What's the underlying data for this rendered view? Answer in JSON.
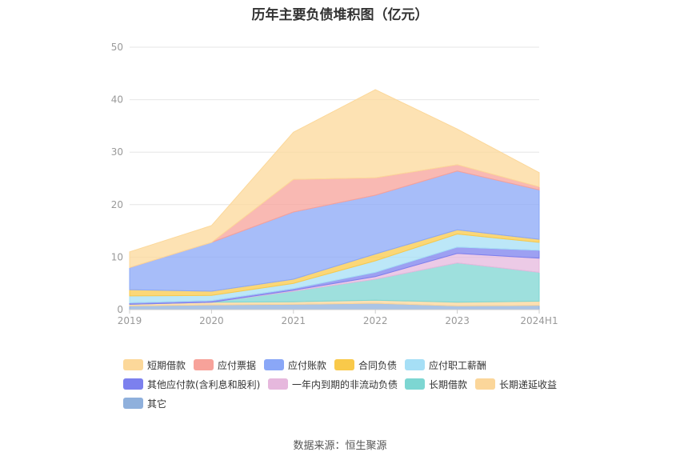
{
  "title": "历年主要负债堆积图（亿元）",
  "source": "数据来源：恒生聚源",
  "chart_data": {
    "type": "area",
    "stacked": true,
    "categories": [
      "2019",
      "2020",
      "2021",
      "2022",
      "2023",
      "2024H1"
    ],
    "ylim": [
      0,
      50
    ],
    "yticks": [
      0,
      10,
      20,
      30,
      40,
      50
    ],
    "grid": true,
    "legend_position": "bottom",
    "series": [
      {
        "name": "短期借款",
        "color": "#fcd89a",
        "values": [
          3.0,
          3.2,
          9.0,
          16.8,
          6.8,
          2.7
        ]
      },
      {
        "name": "应付票据",
        "color": "#f7a29a",
        "values": [
          0.0,
          0.0,
          6.2,
          3.3,
          1.2,
          0.6
        ]
      },
      {
        "name": "应付账款",
        "color": "#8aa7f7",
        "values": [
          4.2,
          9.3,
          12.8,
          11.2,
          11.2,
          9.4
        ]
      },
      {
        "name": "合同负债",
        "color": "#f9c94a",
        "values": [
          1.2,
          0.8,
          0.8,
          1.3,
          0.8,
          0.6
        ]
      },
      {
        "name": "应付职工薪酬",
        "color": "#a6dff6",
        "values": [
          1.3,
          1.0,
          1.0,
          2.2,
          2.5,
          1.5
        ]
      },
      {
        "name": "其他应付款(含利息和股利)",
        "color": "#7c80ee",
        "values": [
          0.3,
          0.3,
          0.3,
          0.8,
          1.2,
          1.5
        ]
      },
      {
        "name": "一年内到期的非流动负债",
        "color": "#e6b8dd",
        "values": [
          0.0,
          0.0,
          0.2,
          0.5,
          1.8,
          2.7
        ]
      },
      {
        "name": "长期借款",
        "color": "#7dd6d2",
        "values": [
          0.0,
          0.0,
          2.0,
          4.0,
          7.5,
          5.5
        ]
      },
      {
        "name": "长期递延收益",
        "color": "#fbd69a",
        "values": [
          0.3,
          0.5,
          0.5,
          0.6,
          0.7,
          0.8
        ]
      },
      {
        "name": "其它",
        "color": "#8fb0dc",
        "values": [
          0.7,
          0.9,
          1.0,
          1.2,
          0.7,
          0.8
        ]
      }
    ]
  }
}
